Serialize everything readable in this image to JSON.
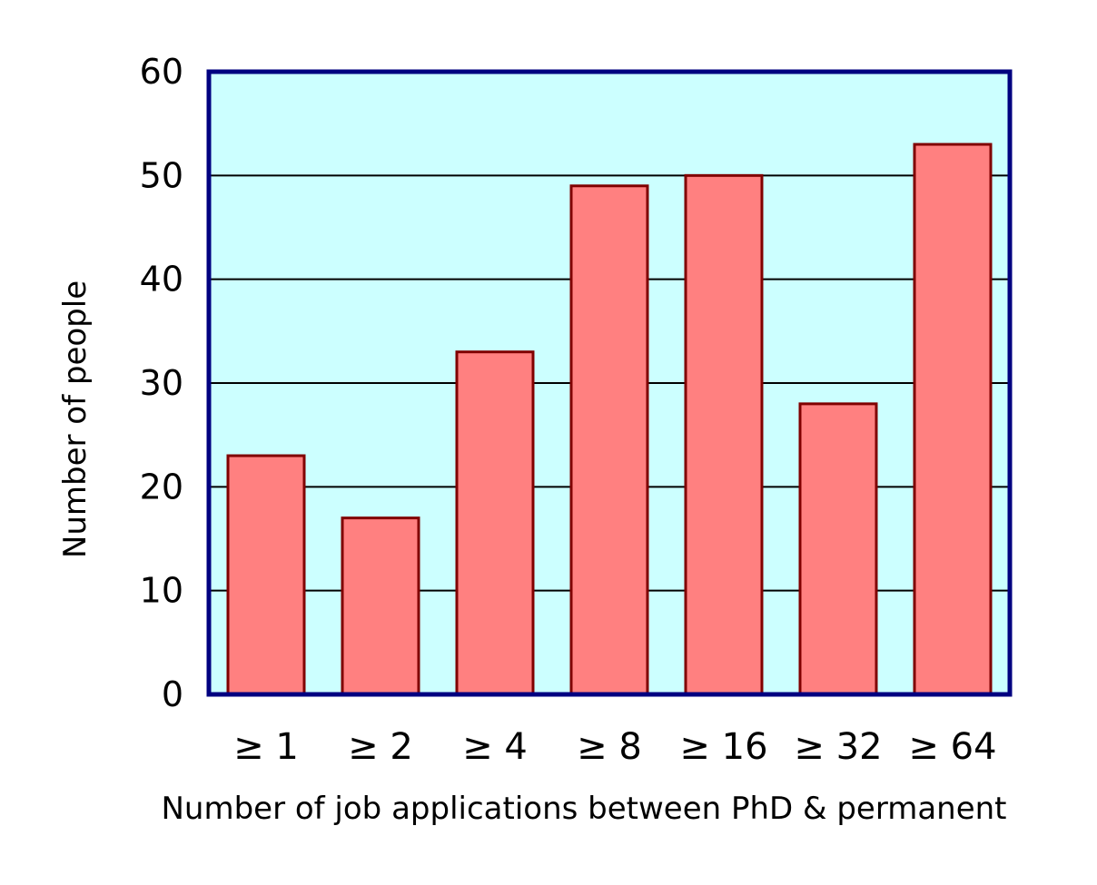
{
  "chart_data": {
    "type": "bar",
    "categories": [
      "≥ 1",
      "≥ 2",
      "≥ 4",
      "≥ 8",
      "≥ 16",
      "≥ 32",
      "≥ 64"
    ],
    "values": [
      23,
      17,
      33,
      49,
      50,
      28,
      53
    ],
    "xlabel": "Number of job applications between PhD & permanent",
    "ylabel": "Number of people",
    "ylim": [
      0,
      60
    ],
    "yticks": [
      "0",
      "10",
      "20",
      "30",
      "40",
      "50",
      "60"
    ],
    "grid": true,
    "legend": "none",
    "colors": {
      "plot_background": "#ccffff",
      "plot_border": "#000080",
      "bar_fill": "#ff8080",
      "bar_stroke": "#800000",
      "gridline": "#000000"
    }
  }
}
